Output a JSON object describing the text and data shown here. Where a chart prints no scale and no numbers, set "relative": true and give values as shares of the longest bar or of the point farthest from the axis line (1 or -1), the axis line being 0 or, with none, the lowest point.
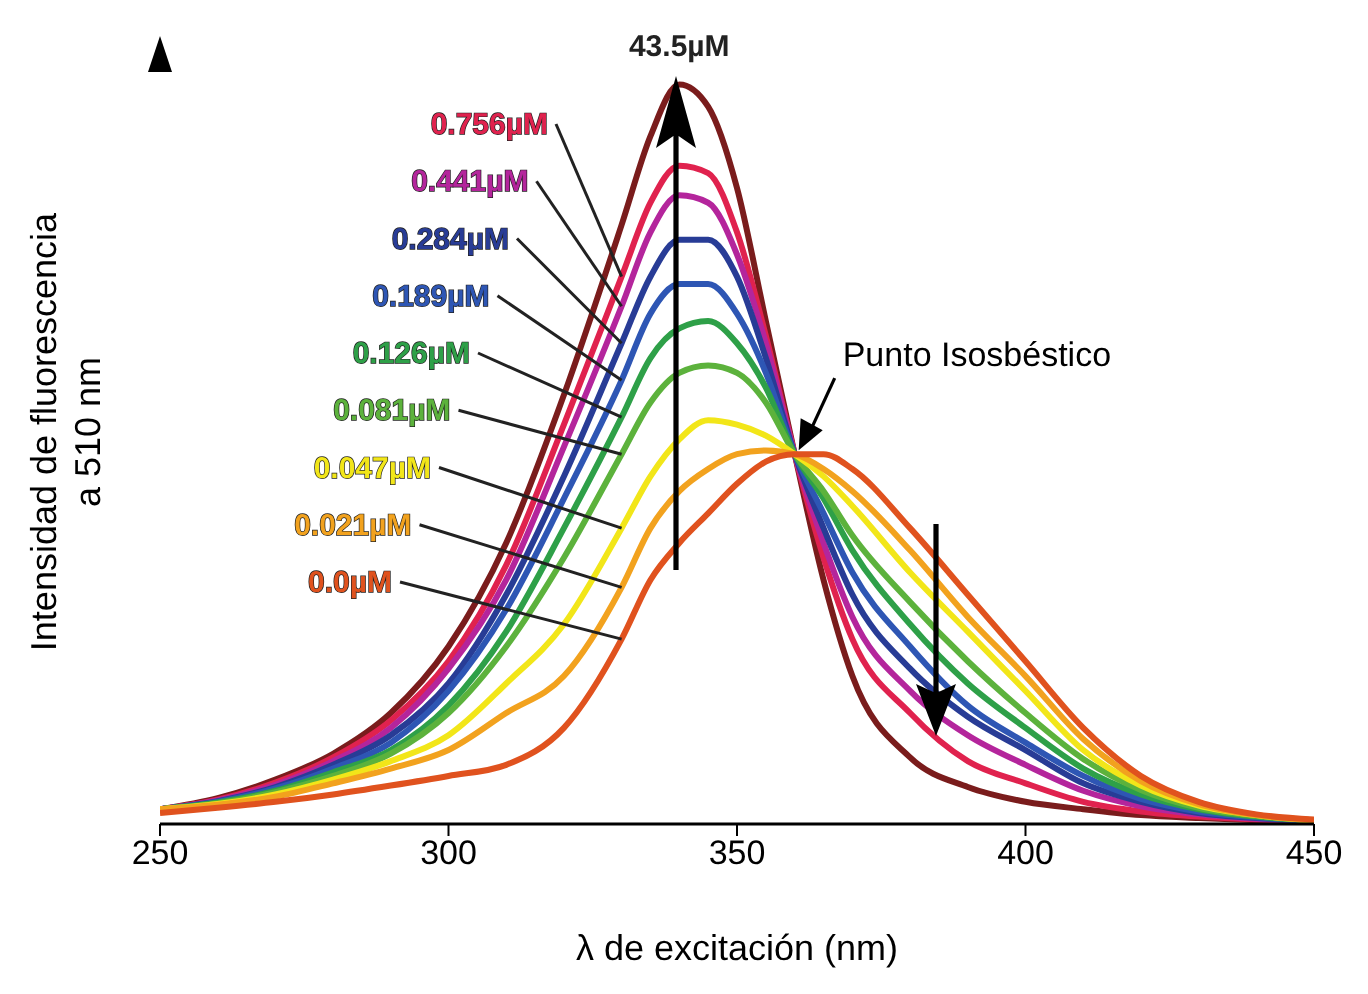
{
  "chart_data": {
    "type": "line",
    "relative": true,
    "xlabel": "λ de excitación (nm)",
    "ylabel": "Intensidad de fluorescencia a 510 nm",
    "xlim": [
      250,
      450
    ],
    "xticks": [
      250,
      300,
      350,
      400,
      450
    ],
    "x": [
      250,
      260,
      270,
      280,
      290,
      300,
      310,
      320,
      330,
      335,
      340,
      345,
      350,
      355,
      360,
      365,
      370,
      380,
      390,
      400,
      410,
      420,
      430,
      440,
      450
    ],
    "series": [
      {
        "name": "43.5µM",
        "color": "#7a1c1c",
        "values": [
          0.02,
          0.035,
          0.06,
          0.095,
          0.15,
          0.24,
          0.38,
          0.58,
          0.81,
          0.93,
          1.0,
          0.97,
          0.86,
          0.68,
          0.5,
          0.33,
          0.2,
          0.09,
          0.05,
          0.03,
          0.02,
          0.012,
          0.008,
          0.005,
          0.003
        ]
      },
      {
        "name": "0.756µM",
        "color": "#e0224e",
        "values": [
          0.02,
          0.033,
          0.056,
          0.09,
          0.14,
          0.22,
          0.35,
          0.54,
          0.74,
          0.84,
          0.89,
          0.88,
          0.8,
          0.66,
          0.5,
          0.36,
          0.25,
          0.15,
          0.085,
          0.055,
          0.03,
          0.017,
          0.01,
          0.006,
          0.004
        ]
      },
      {
        "name": "0.441µM",
        "color": "#b4259c",
        "values": [
          0.02,
          0.032,
          0.053,
          0.085,
          0.13,
          0.21,
          0.33,
          0.51,
          0.7,
          0.8,
          0.85,
          0.84,
          0.77,
          0.65,
          0.5,
          0.38,
          0.28,
          0.18,
          0.12,
          0.08,
          0.045,
          0.024,
          0.013,
          0.007,
          0.004
        ]
      },
      {
        "name": "0.284µM",
        "color": "#283c96",
        "values": [
          0.02,
          0.031,
          0.05,
          0.08,
          0.12,
          0.19,
          0.31,
          0.47,
          0.65,
          0.74,
          0.79,
          0.79,
          0.74,
          0.63,
          0.5,
          0.4,
          0.31,
          0.21,
          0.145,
          0.1,
          0.055,
          0.03,
          0.015,
          0.008,
          0.004
        ]
      },
      {
        "name": "0.189µM",
        "color": "#2e56b4",
        "values": [
          0.02,
          0.03,
          0.048,
          0.075,
          0.11,
          0.18,
          0.29,
          0.44,
          0.6,
          0.69,
          0.73,
          0.73,
          0.69,
          0.61,
          0.5,
          0.42,
          0.34,
          0.24,
          0.16,
          0.11,
          0.065,
          0.034,
          0.017,
          0.009,
          0.004
        ]
      },
      {
        "name": "0.126µM",
        "color": "#2ea048",
        "values": [
          0.02,
          0.029,
          0.045,
          0.07,
          0.1,
          0.16,
          0.26,
          0.4,
          0.55,
          0.63,
          0.67,
          0.68,
          0.65,
          0.59,
          0.5,
          0.44,
          0.37,
          0.27,
          0.19,
          0.13,
          0.075,
          0.04,
          0.02,
          0.01,
          0.005
        ]
      },
      {
        "name": "0.081µM",
        "color": "#5cb23c",
        "values": [
          0.02,
          0.028,
          0.043,
          0.065,
          0.095,
          0.15,
          0.24,
          0.36,
          0.5,
          0.57,
          0.61,
          0.62,
          0.61,
          0.57,
          0.5,
          0.45,
          0.39,
          0.3,
          0.22,
          0.15,
          0.088,
          0.046,
          0.022,
          0.011,
          0.005
        ]
      },
      {
        "name": "0.047µM",
        "color": "#f2e619",
        "values": [
          0.02,
          0.027,
          0.04,
          0.06,
          0.085,
          0.12,
          0.19,
          0.27,
          0.4,
          0.47,
          0.52,
          0.546,
          0.54,
          0.525,
          0.5,
          0.47,
          0.43,
          0.34,
          0.26,
          0.18,
          0.1,
          0.052,
          0.025,
          0.012,
          0.005
        ]
      },
      {
        "name": "0.021µM",
        "color": "#f2a21e",
        "values": [
          0.02,
          0.026,
          0.037,
          0.055,
          0.075,
          0.1,
          0.15,
          0.2,
          0.32,
          0.4,
          0.45,
          0.48,
          0.5,
          0.505,
          0.5,
          0.48,
          0.45,
          0.37,
          0.28,
          0.2,
          0.115,
          0.058,
          0.027,
          0.012,
          0.005
        ]
      },
      {
        "name": "0.0µM",
        "color": "#e0521e",
        "values": [
          0.015,
          0.022,
          0.03,
          0.04,
          0.052,
          0.065,
          0.08,
          0.13,
          0.25,
          0.33,
          0.38,
          0.42,
          0.46,
          0.49,
          0.5,
          0.5,
          0.48,
          0.4,
          0.31,
          0.22,
          0.13,
          0.065,
          0.03,
          0.013,
          0.006
        ]
      }
    ],
    "annotations": [
      {
        "text": "Punto Isosbéstico",
        "x": 360,
        "y": 0.5
      }
    ]
  }
}
